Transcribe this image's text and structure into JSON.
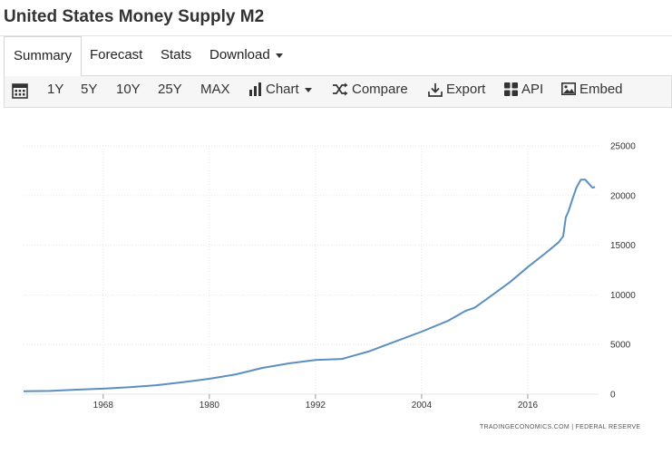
{
  "title": "United States Money Supply M2",
  "tabs": [
    {
      "label": "Summary",
      "active": true
    },
    {
      "label": "Forecast"
    },
    {
      "label": "Stats"
    },
    {
      "label": "Download"
    }
  ],
  "toolbar": {
    "ranges": [
      "1Y",
      "5Y",
      "10Y",
      "25Y",
      "MAX"
    ],
    "chart_label": "Chart",
    "compare_label": "Compare",
    "export_label": "Export",
    "api_label": "API",
    "embed_label": "Embed"
  },
  "source": {
    "provider": "TRADINGECONOMICS.COM",
    "separator": "|",
    "agency": "FEDERAL RESERVE"
  },
  "colors": {
    "line": "#5b8fc0",
    "grid": "#e6e6e6"
  },
  "chart_data": {
    "type": "line",
    "x_ticks": [
      "1968",
      "1980",
      "1992",
      "2004",
      "2016"
    ],
    "y_ticks": [
      "25000",
      "20000",
      "15000",
      "10000",
      "5000",
      "0"
    ],
    "xlim": [
      1959,
      2024
    ],
    "ylim": [
      0,
      25000
    ],
    "grid": true,
    "series": [
      {
        "x": [
          1959,
          1962,
          1965,
          1968,
          1971,
          1974,
          1977,
          1980,
          1983,
          1986,
          1989,
          1992,
          1995,
          1998,
          2001,
          2004,
          2007,
          2009,
          2010,
          2012,
          2014,
          2016,
          2018,
          2019.5,
          2020.0,
          2020.3,
          2020.6,
          2021.0,
          2021.5,
          2022.0,
          2022.5,
          2023.0,
          2023.3,
          2023.6
        ],
        "y": [
          290,
          330,
          460,
          560,
          700,
          900,
          1200,
          1550,
          2000,
          2650,
          3100,
          3450,
          3550,
          4300,
          5300,
          6300,
          7400,
          8400,
          8700,
          10000,
          11300,
          12800,
          14200,
          15300,
          15900,
          17800,
          18400,
          19500,
          20800,
          21600,
          21600,
          21100,
          20800,
          20850
        ]
      }
    ]
  }
}
